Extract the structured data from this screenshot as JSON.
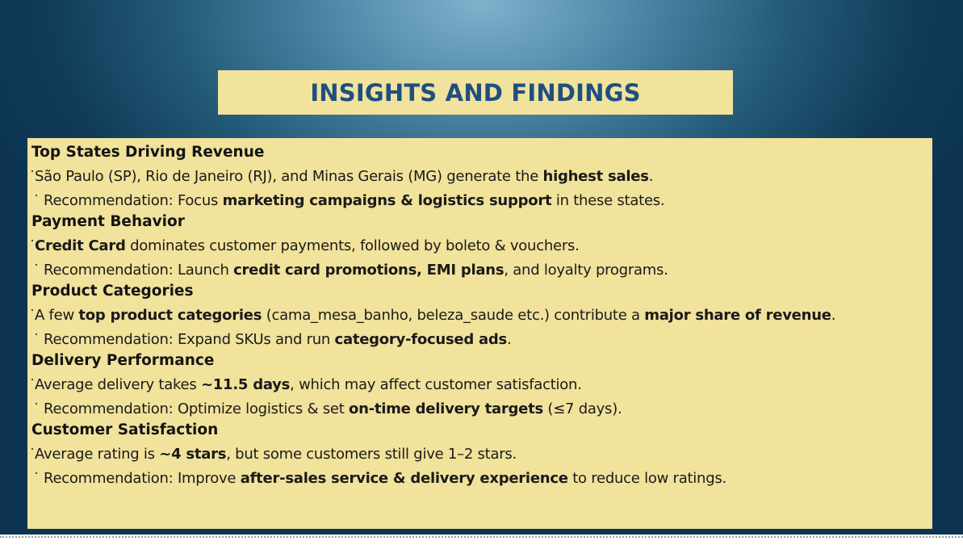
{
  "title": "INSIGHTS AND FINDINGS",
  "colors": {
    "title_box": "#f1e29c",
    "title_text": "#1e4f80",
    "content_box": "#f1e29c",
    "background_center": "#7fb2cd",
    "background_edge": "#0c3450"
  },
  "sections": [
    {
      "heading": "Top States Driving Revenue",
      "finding": [
        {
          "text": "São Paulo (SP), Rio de Janeiro (RJ), and Minas Gerais (MG) generate the ",
          "bold": false
        },
        {
          "text": "highest sales",
          "bold": true
        },
        {
          "text": ".",
          "bold": false
        }
      ],
      "recommendation": [
        {
          "text": "Recommendation: Focus ",
          "bold": false
        },
        {
          "text": "marketing campaigns & logistics support",
          "bold": true
        },
        {
          "text": " in these states.",
          "bold": false
        }
      ]
    },
    {
      "heading": "Payment Behavior",
      "finding": [
        {
          "text": "Credit Card",
          "bold": true
        },
        {
          "text": " dominates customer payments, followed by boleto & vouchers.",
          "bold": false
        }
      ],
      "recommendation": [
        {
          "text": "Recommendation: Launch ",
          "bold": false
        },
        {
          "text": "credit card promotions, EMI plans",
          "bold": true
        },
        {
          "text": ", and loyalty programs.",
          "bold": false
        }
      ]
    },
    {
      "heading": "Product Categories",
      "finding": [
        {
          "text": "A few ",
          "bold": false
        },
        {
          "text": "top product categories",
          "bold": true
        },
        {
          "text": " (cama_mesa_banho, beleza_saude etc.) contribute a ",
          "bold": false
        },
        {
          "text": "major share of revenue",
          "bold": true
        },
        {
          "text": ".",
          "bold": false
        }
      ],
      "recommendation": [
        {
          "text": "Recommendation: Expand SKUs and run ",
          "bold": false
        },
        {
          "text": "category-focused ads",
          "bold": true
        },
        {
          "text": ".",
          "bold": false
        }
      ]
    },
    {
      "heading": "Delivery Performance",
      "finding": [
        {
          "text": "Average delivery takes ",
          "bold": false
        },
        {
          "text": "~11.5 days",
          "bold": true
        },
        {
          "text": ", which may affect customer satisfaction.",
          "bold": false
        }
      ],
      "recommendation": [
        {
          "text": "Recommendation: Optimize logistics & set ",
          "bold": false
        },
        {
          "text": "on-time delivery targets",
          "bold": true
        },
        {
          "text": " (≤7 days).",
          "bold": false
        }
      ]
    },
    {
      "heading": "Customer Satisfaction",
      "finding": [
        {
          "text": "Average rating is ",
          "bold": false
        },
        {
          "text": "~4 stars",
          "bold": true
        },
        {
          "text": ", but some customers still give 1–2 stars.",
          "bold": false
        }
      ],
      "recommendation": [
        {
          "text": "Recommendation: Improve ",
          "bold": false
        },
        {
          "text": "after-sales service & delivery experience",
          "bold": true
        },
        {
          "text": " to reduce low ratings.",
          "bold": false
        }
      ]
    }
  ]
}
